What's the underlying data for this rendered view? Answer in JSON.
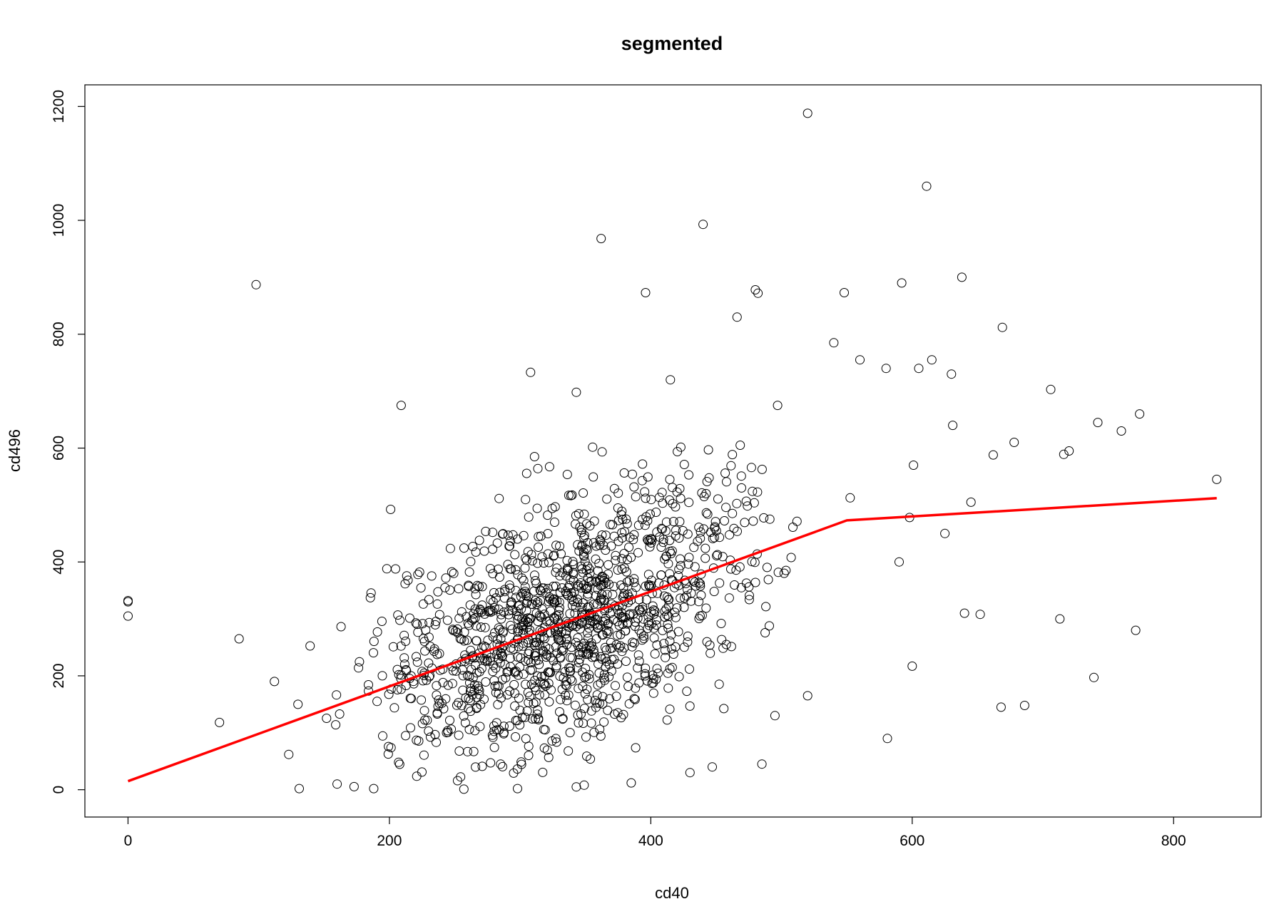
{
  "chart_data": {
    "type": "scatter",
    "title": "segmented",
    "xlabel": "cd40",
    "ylabel": "cd496",
    "xlim": [
      -33,
      867
    ],
    "ylim": [
      -48,
      1238
    ],
    "xticks": [
      0,
      200,
      400,
      600,
      800
    ],
    "yticks": [
      0,
      200,
      400,
      600,
      800,
      1000,
      1200
    ],
    "grid": false,
    "legend": "none",
    "colors": {
      "points": "#000000",
      "fit": "#ff0000"
    },
    "generated_points": {
      "n": 1300,
      "seed": 20240,
      "note": "Pseudo-random bulk of the scatter"
    },
    "points": [
      [
        0,
        330
      ],
      [
        0,
        332
      ],
      [
        0,
        305
      ],
      [
        70,
        118
      ],
      [
        85,
        265
      ],
      [
        98,
        887
      ],
      [
        112,
        190
      ],
      [
        123,
        62
      ],
      [
        130,
        150
      ],
      [
        131,
        2
      ],
      [
        209,
        675
      ],
      [
        308,
        733
      ],
      [
        311,
        585
      ],
      [
        343,
        698
      ],
      [
        362,
        968
      ],
      [
        396,
        873
      ],
      [
        415,
        720
      ],
      [
        440,
        993
      ],
      [
        466,
        830
      ],
      [
        480,
        878
      ],
      [
        482,
        872
      ],
      [
        497,
        675
      ],
      [
        520,
        1188
      ],
      [
        548,
        873
      ],
      [
        611,
        1060
      ],
      [
        638,
        900
      ],
      [
        669,
        812
      ],
      [
        706,
        703
      ],
      [
        716,
        589
      ],
      [
        742,
        645
      ],
      [
        760,
        630
      ],
      [
        774,
        660
      ],
      [
        833,
        545
      ],
      [
        739,
        197
      ],
      [
        771,
        280
      ],
      [
        713,
        300
      ],
      [
        668,
        145
      ],
      [
        686,
        148
      ],
      [
        600,
        217
      ],
      [
        581,
        90
      ],
      [
        590,
        400
      ],
      [
        598,
        478
      ],
      [
        601,
        570
      ],
      [
        605,
        740
      ],
      [
        625,
        450
      ],
      [
        631,
        640
      ],
      [
        640,
        310
      ],
      [
        645,
        505
      ],
      [
        652,
        308
      ],
      [
        580,
        740
      ],
      [
        592,
        890
      ],
      [
        560,
        755
      ],
      [
        540,
        785
      ],
      [
        615,
        755
      ],
      [
        630,
        730
      ],
      [
        662,
        588
      ],
      [
        678,
        610
      ],
      [
        720,
        595
      ],
      [
        520,
        165
      ],
      [
        495,
        130
      ],
      [
        485,
        45
      ],
      [
        430,
        30
      ],
      [
        447,
        40
      ],
      [
        385,
        12
      ],
      [
        343,
        5
      ],
      [
        349,
        8
      ],
      [
        298,
        2
      ],
      [
        257,
        1
      ],
      [
        188,
        2
      ],
      [
        160,
        10
      ]
    ],
    "fit_line": [
      [
        0,
        15
      ],
      [
        550,
        473
      ],
      [
        833,
        512
      ]
    ]
  }
}
